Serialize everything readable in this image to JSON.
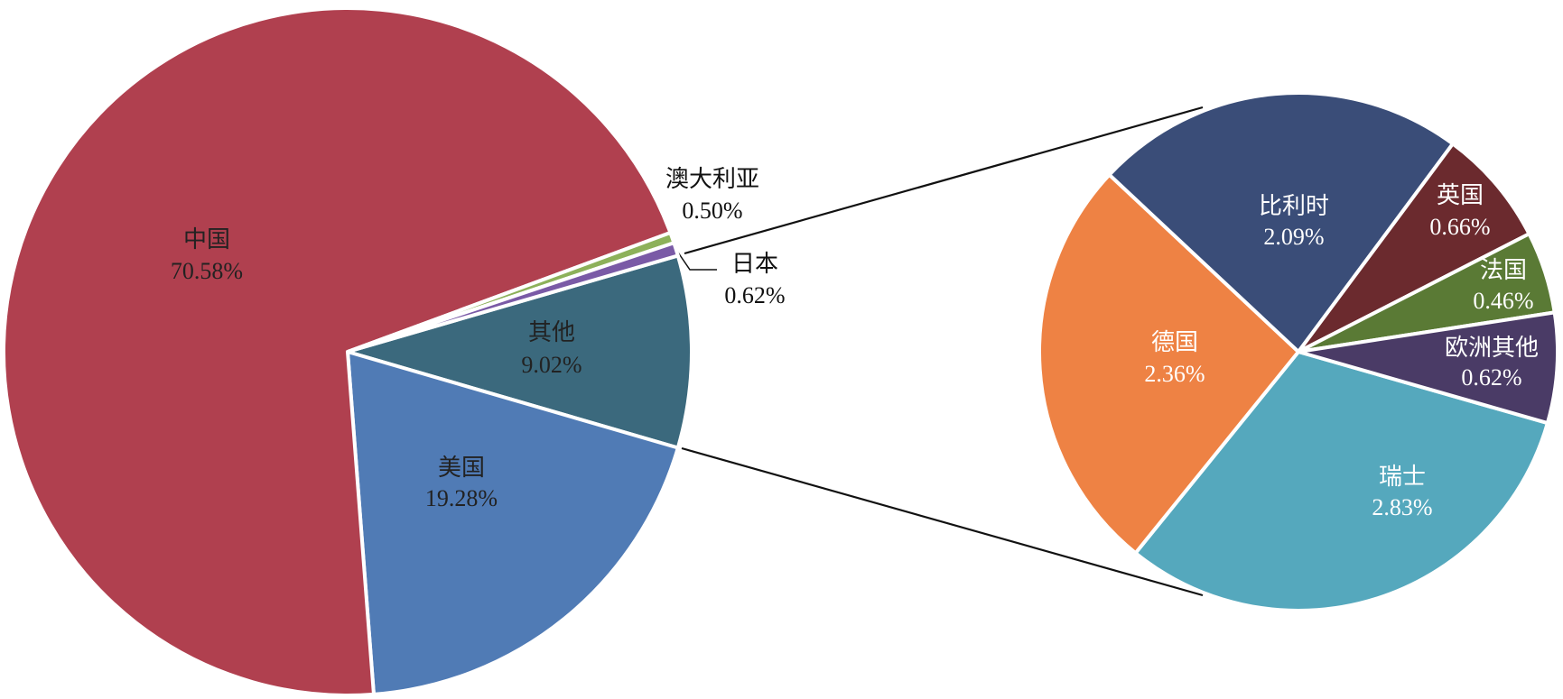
{
  "chart_data": [
    {
      "type": "pie",
      "categories": [
        "其他",
        "美国",
        "中国",
        "澳大利亚",
        "日本"
      ],
      "values": [
        9.02,
        19.28,
        70.58,
        0.5,
        0.62
      ],
      "value_labels": [
        "9.02%",
        "19.28%",
        "70.58%",
        "0.50%",
        "0.62%"
      ],
      "colors": [
        "#3b697d",
        "#507bb5",
        "#b0404f",
        "#8db15a",
        "#7a5aa6"
      ]
    },
    {
      "type": "pie",
      "categories": [
        "瑞士",
        "德国",
        "比利时",
        "英国",
        "法国",
        "欧洲其他"
      ],
      "values": [
        2.83,
        2.36,
        2.09,
        0.66,
        0.46,
        0.62
      ],
      "value_labels": [
        "2.83%",
        "2.36%",
        "2.09%",
        "0.66%",
        "0.46%",
        "0.62%"
      ],
      "colors": [
        "#55a8bd",
        "#ee8244",
        "#3a4d78",
        "#6b2a2e",
        "#5a7a35",
        "#4a3b66"
      ]
    }
  ]
}
